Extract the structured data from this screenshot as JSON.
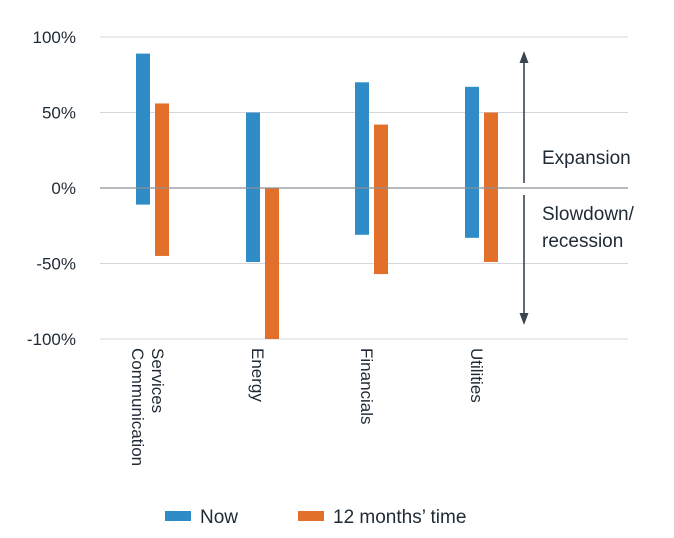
{
  "chart_data": {
    "type": "bar",
    "subtype": "floating-range",
    "categories": [
      "Communication Services",
      "Energy",
      "Financials",
      "Utilities"
    ],
    "category_label_lines": [
      [
        "Communication",
        "Services"
      ],
      [
        "Energy"
      ],
      [
        "Financials"
      ],
      [
        "Utilities"
      ]
    ],
    "series": [
      {
        "name": "Now",
        "color": "#2f8cc6",
        "ranges": [
          [
            -11,
            89
          ],
          [
            -49,
            50
          ],
          [
            -31,
            70
          ],
          [
            -33,
            67
          ]
        ]
      },
      {
        "name": "12 months’ time",
        "color": "#e2702b",
        "ranges": [
          [
            -45,
            56
          ],
          [
            -100,
            0
          ],
          [
            -57,
            42
          ],
          [
            -49,
            50
          ]
        ]
      }
    ],
    "ylim": [
      -100,
      100
    ],
    "yticks": [
      100,
      50,
      0,
      -50,
      -100
    ],
    "ytick_labels": [
      "100%",
      "50%",
      "0%",
      "-50%",
      "-100%"
    ],
    "grid": true,
    "legend_position": "bottom",
    "annotations": {
      "up": "Expansion",
      "down_lines": [
        "Slowdown/",
        "recession"
      ]
    }
  }
}
